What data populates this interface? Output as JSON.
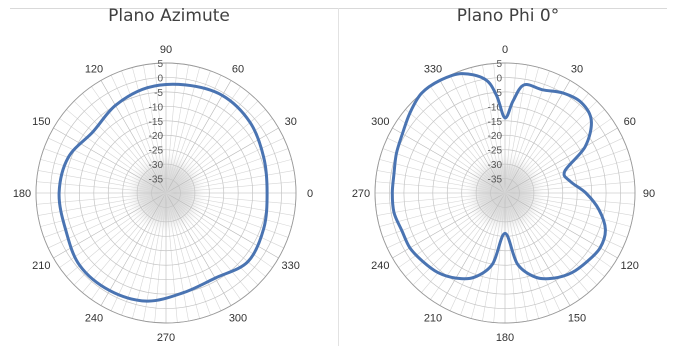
{
  "chart_data": [
    {
      "type": "polar",
      "title": "Plano Azimute",
      "angle_labels": [
        "0",
        "30",
        "60",
        "90",
        "120",
        "150",
        "180",
        "210",
        "240",
        "270",
        "300",
        "330"
      ],
      "zero_direction": "east",
      "rotation": "counterclockwise",
      "radial_labels": [
        "5",
        "0",
        "-5",
        "-10",
        "-15",
        "-20",
        "-25",
        "-30",
        "-35"
      ],
      "rlim": [
        -40,
        5
      ],
      "grid": true,
      "line_color": "#4a74b2",
      "series": [
        {
          "angles_deg": [
            0,
            20,
            40,
            60,
            80,
            100,
            120,
            140,
            160,
            180,
            200,
            220,
            240,
            260,
            280,
            300,
            320,
            340
          ],
          "values_db": [
            -5,
            -4,
            -2,
            -1,
            -2,
            -3,
            -5,
            -7,
            -4,
            -3,
            -3,
            -1,
            -1,
            -2,
            -5,
            -6,
            -3,
            -4
          ]
        }
      ]
    },
    {
      "type": "polar",
      "title": "Plano Phi 0°",
      "angle_labels": [
        "0",
        "30",
        "60",
        "90",
        "120",
        "150",
        "180",
        "210",
        "240",
        "270",
        "300",
        "330"
      ],
      "zero_direction": "north",
      "rotation": "clockwise",
      "radial_labels": [
        "5",
        "0",
        "-5",
        "-10",
        "-15",
        "-20",
        "-25",
        "-30",
        "-35"
      ],
      "rlim": [
        -40,
        5
      ],
      "grid": true,
      "line_color": "#4a74b2",
      "series": [
        {
          "angles_deg": [
            0,
            5,
            10,
            20,
            30,
            40,
            50,
            60,
            70,
            80,
            90,
            100,
            110,
            120,
            130,
            140,
            150,
            160,
            170,
            180,
            190,
            200,
            210,
            220,
            230,
            240,
            250,
            260,
            270,
            280,
            290,
            300,
            310,
            320,
            330,
            340,
            350,
            355
          ],
          "values_db": [
            -14,
            -8,
            -2,
            -2,
            0,
            1,
            -1,
            -8,
            -18,
            -17,
            -12,
            -7,
            -3,
            -2,
            -3,
            -4,
            -6,
            -9,
            -15,
            -26,
            -15,
            -9,
            -6,
            -4,
            -3,
            -2,
            -2,
            -1,
            -1,
            -1,
            0,
            1,
            3,
            5,
            5,
            4,
            0,
            -6
          ]
        }
      ]
    }
  ]
}
